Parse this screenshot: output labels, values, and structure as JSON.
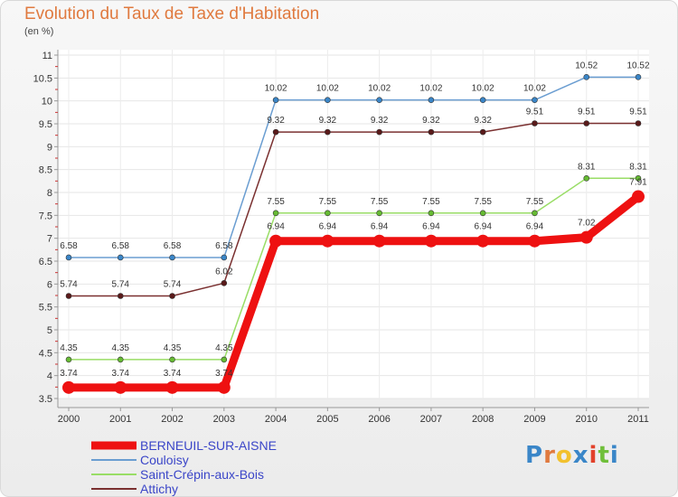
{
  "chart_data": {
    "type": "line",
    "title": "Evolution du Taux de Taxe d'Habitation",
    "subtitle": "(en %)",
    "categories": [
      "2000",
      "2001",
      "2002",
      "2003",
      "2004",
      "2005",
      "2006",
      "2007",
      "2008",
      "2009",
      "2010",
      "2011"
    ],
    "ylim": [
      3.5,
      11
    ],
    "yticks": [
      3.5,
      4,
      4.5,
      5,
      5.5,
      6,
      6.5,
      7,
      7.5,
      8,
      8.5,
      9,
      9.5,
      10,
      10.5,
      11
    ],
    "ytick_labels": [
      "3.5",
      "4",
      "4.5",
      "5",
      "5.5",
      "6",
      "6.5",
      "7",
      "7.5",
      "8",
      "8.5",
      "9",
      "9.5",
      "10",
      "10.5",
      "11"
    ],
    "legend_position": "bottom-left",
    "series": [
      {
        "name": "Couloisy",
        "color": "#6a9dd1",
        "point_color": "#3a86c8",
        "values": [
          6.58,
          6.58,
          6.58,
          6.58,
          10.02,
          10.02,
          10.02,
          10.02,
          10.02,
          10.02,
          10.52,
          10.52
        ],
        "labels": [
          "6.58",
          "6.58",
          "6.58",
          "6.58",
          "10.02",
          "10.02",
          "10.02",
          "10.02",
          "10.02",
          "10.02",
          "10.52",
          "10.52"
        ]
      },
      {
        "name": "Attichy",
        "color": "#7a3030",
        "point_color": "#5a1a1a",
        "values": [
          5.74,
          5.74,
          5.74,
          6.02,
          9.32,
          9.32,
          9.32,
          9.32,
          9.32,
          9.51,
          9.51,
          9.51
        ],
        "labels": [
          "5.74",
          "5.74",
          "5.74",
          "6.02",
          "9.32",
          "9.32",
          "9.32",
          "9.32",
          "9.32",
          "9.51",
          "9.51",
          "9.51"
        ]
      },
      {
        "name": "Saint-Crépin-aux-Bois",
        "color": "#99dd66",
        "point_color": "#66bb33",
        "values": [
          4.35,
          4.35,
          4.35,
          4.35,
          7.55,
          7.55,
          7.55,
          7.55,
          7.55,
          7.55,
          8.31,
          8.31
        ],
        "labels": [
          "4.35",
          "4.35",
          "4.35",
          "4.35",
          "7.55",
          "7.55",
          "7.55",
          "7.55",
          "7.55",
          "7.55",
          "8.31",
          "8.31"
        ]
      },
      {
        "name": "BERNEUIL-SUR-AISNE",
        "color": "#ee1111",
        "point_color": "#ee1111",
        "values": [
          3.74,
          3.74,
          3.74,
          3.74,
          6.94,
          6.94,
          6.94,
          6.94,
          6.94,
          6.94,
          7.02,
          7.91
        ],
        "labels": [
          "3.74",
          "3.74",
          "3.74",
          "3.74",
          "6.94",
          "6.94",
          "6.94",
          "6.94",
          "6.94",
          "6.94",
          "7.02",
          "7.91"
        ]
      }
    ],
    "legend_order": [
      "BERNEUIL-SUR-AISNE",
      "Couloisy",
      "Saint-Crépin-aux-Bois",
      "Attichy"
    ]
  },
  "logo": {
    "letters": [
      "P",
      "r",
      "o",
      "x",
      "i",
      "t",
      "i"
    ],
    "colors": [
      "#3a86c8",
      "#e07a3f",
      "#f2c12e",
      "#3a86c8",
      "#e2412b",
      "#6fbf3a",
      "#3a86c8"
    ]
  }
}
